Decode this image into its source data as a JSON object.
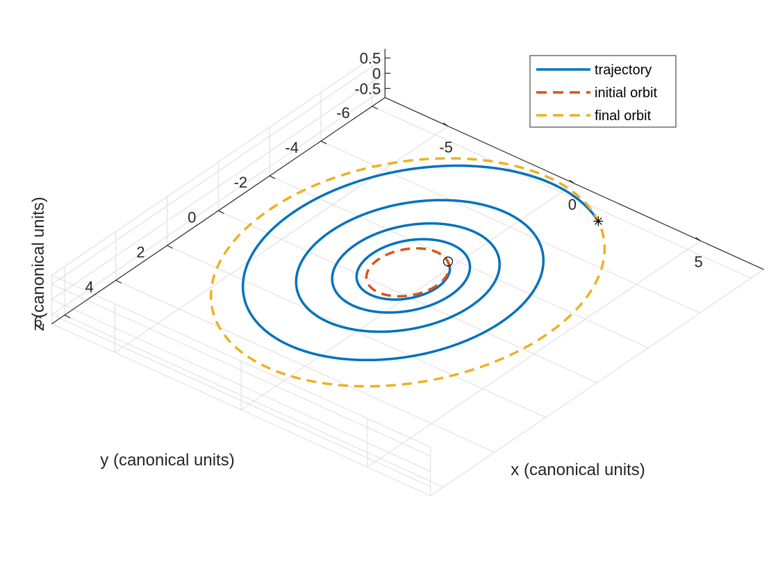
{
  "chart_data": {
    "type": "line",
    "projection": "3d",
    "xlabel": "x (canonical units)",
    "ylabel": "y (canonical units)",
    "zlabel": "z (canonical units)",
    "xlim": [
      -7.5,
      7.5
    ],
    "ylim": [
      -6.5,
      6.5
    ],
    "zlim": [
      -0.8,
      0.8
    ],
    "x_ticks": [
      -5,
      0,
      5
    ],
    "y_ticks": [
      -6,
      -4,
      -2,
      0,
      2,
      4,
      6
    ],
    "z_ticks": [
      -0.5,
      0,
      0.5
    ],
    "x_tick_labels": [
      "-5",
      "0",
      "5"
    ],
    "y_tick_labels": [
      "-6",
      "-4",
      "-2",
      "0",
      "2",
      "4",
      "6"
    ],
    "z_tick_labels": [
      "-0.5",
      "0",
      "0.5"
    ],
    "grid": true,
    "legend_position": "top-right",
    "series": [
      {
        "name": "trajectory",
        "style": "solid",
        "color": "#0072BD",
        "parametric": {
          "r_start": 1.15,
          "r_end": 5.47,
          "turns": 4.0,
          "start_angle_deg": -60,
          "growth": "exponential"
        }
      },
      {
        "name": "initial orbit",
        "style": "dashed",
        "color": "#D95319",
        "circle": {
          "center": [
            0,
            0,
            0
          ],
          "radius": 1.15
        }
      },
      {
        "name": "final orbit",
        "style": "dashed",
        "color": "#EDB120",
        "circle": {
          "center": [
            0,
            0,
            0
          ],
          "radius": 5.47
        }
      }
    ],
    "markers": [
      {
        "name": "start",
        "symbol": "circle",
        "x": 0.58,
        "y": -1.0,
        "z": 0
      },
      {
        "name": "end",
        "symbol": "asterisk",
        "x": 2.735,
        "y": -4.74,
        "z": 0
      }
    ]
  }
}
